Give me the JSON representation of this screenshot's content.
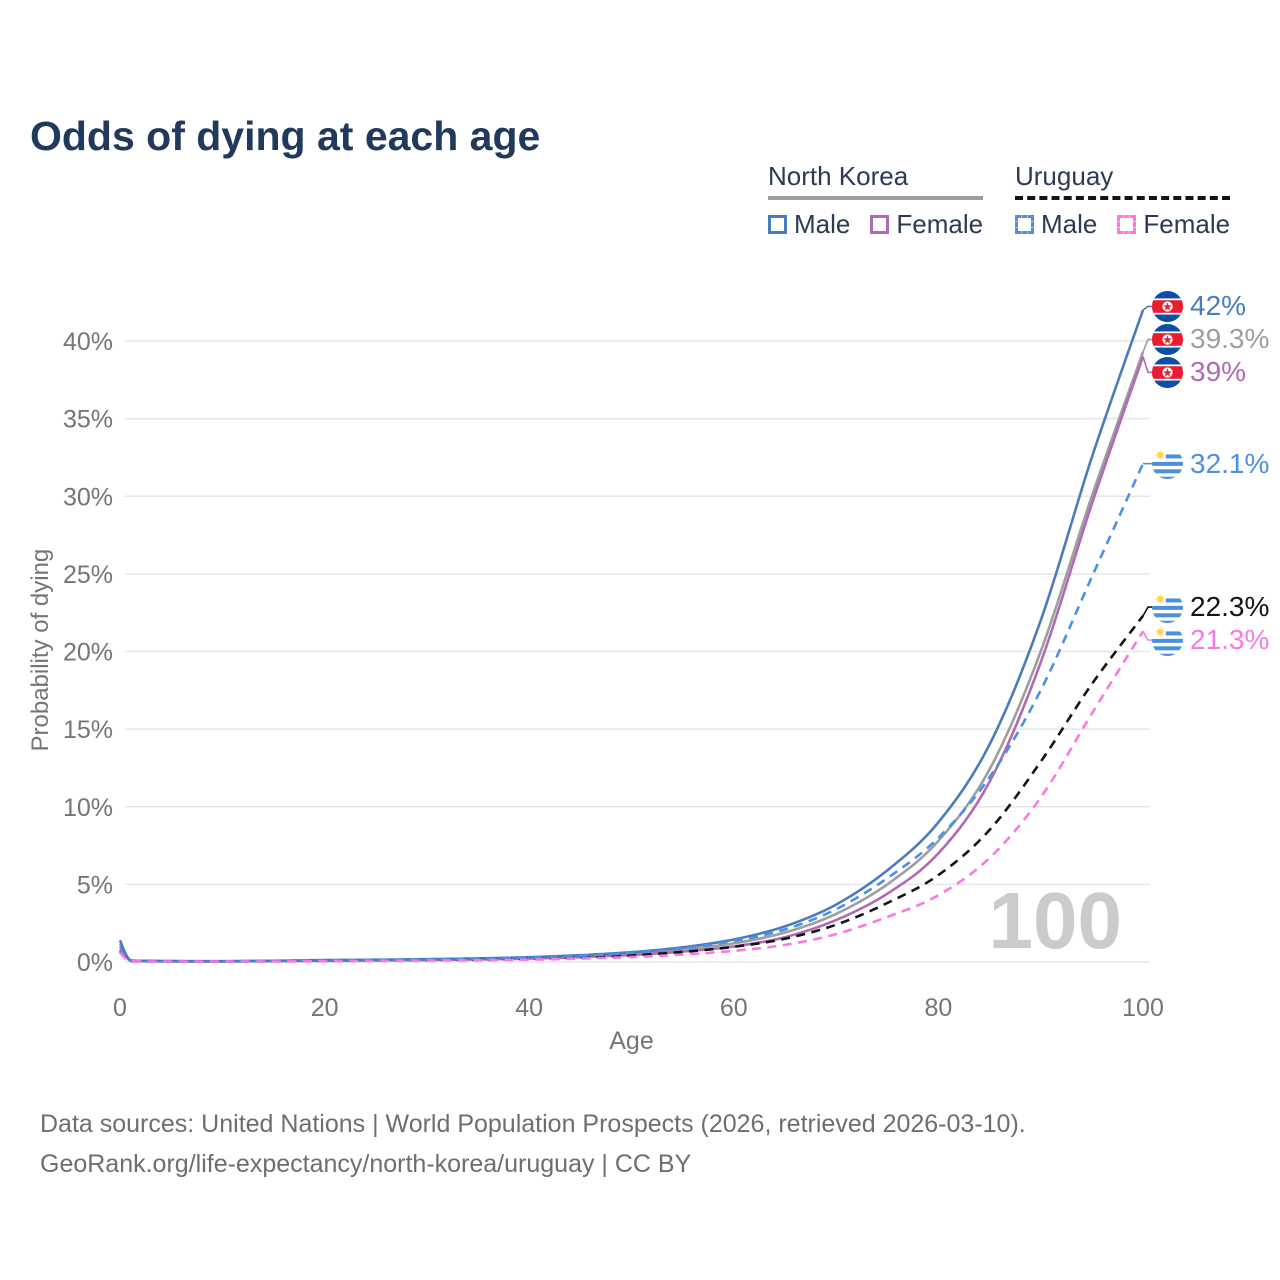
{
  "title": "Odds of dying at each age",
  "legend": {
    "groups": [
      {
        "country": "North Korea",
        "line_style": "solid",
        "line_color": "#9e9e9e",
        "items": [
          {
            "label": "Male",
            "color": "#4a7bbd",
            "style": "solid"
          },
          {
            "label": "Female",
            "color": "#b06ab3",
            "style": "solid"
          }
        ]
      },
      {
        "country": "Uruguay",
        "line_style": "dashed",
        "line_color": "#141414",
        "items": [
          {
            "label": "Male",
            "color": "#4a90e8",
            "style": "dashed"
          },
          {
            "label": "Female",
            "color": "#fb78e2",
            "style": "dashed"
          }
        ]
      }
    ]
  },
  "chart_data": {
    "type": "line",
    "title": "Odds of dying at each age",
    "xlabel": "Age",
    "ylabel": "Probability of dying",
    "xlim": [
      0,
      100
    ],
    "ylim_pct": [
      0,
      42.5
    ],
    "x_ticks": [
      0,
      20,
      40,
      60,
      80,
      100
    ],
    "y_ticks_pct": [
      0,
      5,
      10,
      15,
      20,
      25,
      30,
      35,
      40
    ],
    "y_tick_labels": [
      "0%",
      "5%",
      "10%",
      "15%",
      "20%",
      "25%",
      "30%",
      "35%",
      "40%"
    ],
    "grid": "horizontal-only",
    "watermark": "100",
    "x": [
      0,
      1,
      3,
      5,
      10,
      15,
      20,
      25,
      30,
      35,
      40,
      45,
      50,
      55,
      60,
      65,
      70,
      75,
      80,
      85,
      90,
      95,
      100
    ],
    "series": [
      {
        "name": "North Korea",
        "country": "North Korea",
        "sex": "All",
        "style": "solid",
        "color": "#9e9e9e",
        "flag": "north-korea",
        "end_label": "39.3%",
        "end_value_pct": 39.3,
        "values": [
          1.2,
          0.1,
          0.07,
          0.05,
          0.04,
          0.07,
          0.1,
          0.12,
          0.15,
          0.19,
          0.26,
          0.37,
          0.53,
          0.8,
          1.2,
          1.9,
          3.1,
          5.0,
          7.8,
          12.4,
          20.0,
          30.0,
          39.3
        ]
      },
      {
        "name": "North Korea Female",
        "country": "North Korea",
        "sex": "Female",
        "style": "solid",
        "color": "#b06ab3",
        "flag": "north-korea",
        "end_label": "39%",
        "end_value_pct": 39.0,
        "values": [
          1.0,
          0.09,
          0.06,
          0.04,
          0.04,
          0.06,
          0.08,
          0.1,
          0.12,
          0.16,
          0.22,
          0.31,
          0.45,
          0.67,
          1.0,
          1.6,
          2.7,
          4.4,
          7.0,
          11.6,
          19.3,
          29.5,
          39.0
        ]
      },
      {
        "name": "North Korea Male",
        "country": "North Korea",
        "sex": "Male",
        "style": "solid",
        "color": "#4a7bbd",
        "flag": "north-korea",
        "end_label": "42%",
        "end_value_pct": 42.0,
        "values": [
          1.4,
          0.12,
          0.08,
          0.06,
          0.05,
          0.08,
          0.12,
          0.15,
          0.18,
          0.23,
          0.31,
          0.44,
          0.63,
          0.95,
          1.45,
          2.3,
          3.7,
          5.9,
          9.0,
          14.0,
          22.0,
          32.5,
          42.0
        ]
      },
      {
        "name": "Uruguay",
        "country": "Uruguay",
        "sex": "All",
        "style": "dashed",
        "color": "#141414",
        "flag": "uruguay",
        "end_label": "22.3%",
        "end_value_pct": 22.3,
        "values": [
          0.7,
          0.06,
          0.04,
          0.03,
          0.02,
          0.05,
          0.08,
          0.1,
          0.12,
          0.16,
          0.21,
          0.3,
          0.43,
          0.65,
          0.98,
          1.5,
          2.4,
          3.8,
          5.6,
          8.5,
          12.9,
          17.9,
          22.3
        ]
      },
      {
        "name": "Uruguay Male",
        "country": "Uruguay",
        "sex": "Male",
        "style": "dashed",
        "color": "#4a90e8",
        "flag": "uruguay",
        "end_label": "32.1%",
        "end_value_pct": 32.1,
        "values": [
          0.8,
          0.07,
          0.04,
          0.03,
          0.03,
          0.07,
          0.11,
          0.13,
          0.16,
          0.21,
          0.28,
          0.4,
          0.58,
          0.88,
          1.35,
          2.1,
          3.4,
          5.4,
          8.0,
          11.9,
          17.5,
          24.8,
          32.1
        ]
      },
      {
        "name": "Uruguay Female",
        "country": "Uruguay",
        "sex": "Female",
        "style": "dashed",
        "color": "#fb78e2",
        "flag": "uruguay",
        "end_label": "21.3%",
        "end_value_pct": 21.3,
        "values": [
          0.6,
          0.05,
          0.03,
          0.02,
          0.02,
          0.03,
          0.05,
          0.07,
          0.09,
          0.11,
          0.15,
          0.22,
          0.32,
          0.48,
          0.72,
          1.1,
          1.8,
          2.9,
          4.3,
          6.7,
          10.6,
          16.0,
          21.3
        ]
      }
    ]
  },
  "colors": {
    "title": "#20395c",
    "axis_text": "#757575",
    "gridline": "#e6e6e6",
    "watermark": "#cbcbcb",
    "flag_nk_blue": "#0a4ea5",
    "flag_nk_red": "#eb1c2d",
    "flag_uy_blue": "#4a90e0",
    "flag_uy_sun": "#ffd24a"
  },
  "footer": {
    "line1": "Data sources: United Nations | World Population Prospects (2026, retrieved 2026-03-10).",
    "line2": "GeoRank.org/life-expectancy/north-korea/uruguay | CC BY"
  }
}
